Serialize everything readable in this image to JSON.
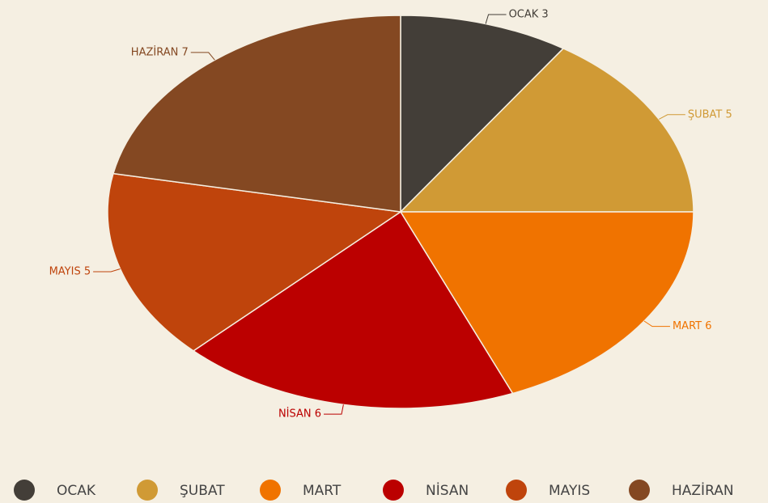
{
  "chart_data": {
    "type": "pie",
    "categories": [
      "OCAK",
      "ŞUBAT",
      "MART",
      "NİSAN",
      "MAYIS",
      "HAZİRAN"
    ],
    "values": [
      3,
      5,
      6,
      6,
      5,
      7
    ],
    "value_labels": [
      "OCAK 3",
      "ŞUBAT 5",
      "MART 6",
      "NİSAN 6",
      "MAYIS 5",
      "HAZİRAN 7"
    ],
    "colors": [
      "#433e38",
      "#d09a35",
      "#f07300",
      "#bb0000",
      "#bf440c",
      "#844822"
    ],
    "legend": "bottom"
  }
}
